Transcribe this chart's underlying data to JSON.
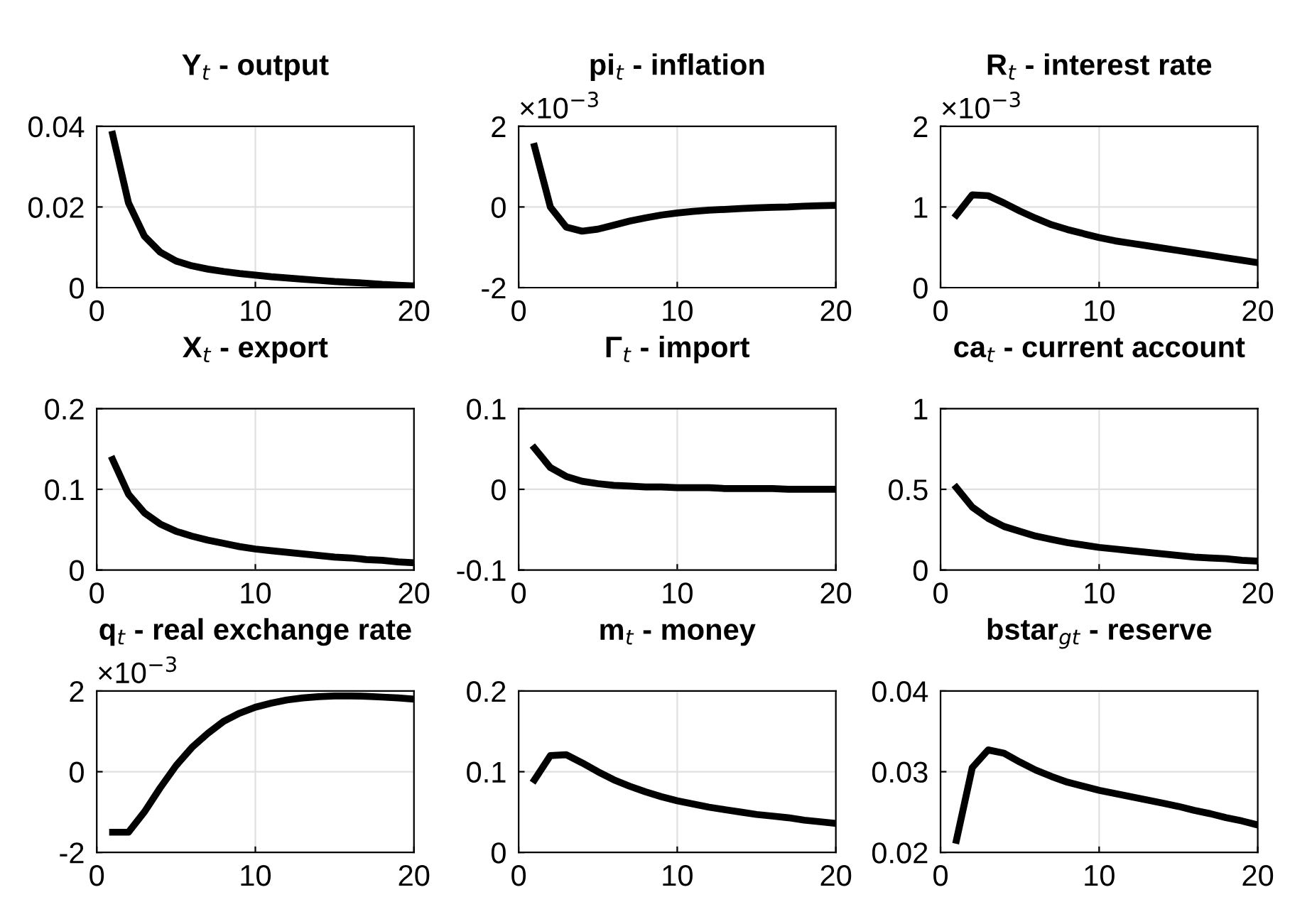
{
  "chart_data": [
    {
      "type": "line",
      "title": "Y$_{t}$ - output",
      "x": [
        1,
        2,
        3,
        4,
        5,
        6,
        7,
        8,
        9,
        10,
        11,
        12,
        13,
        14,
        15,
        16,
        17,
        18,
        19,
        20
      ],
      "series": [
        {
          "color": "#000000",
          "values": [
            0.038,
            0.021,
            0.0128,
            0.0088,
            0.0066,
            0.0054,
            0.0046,
            0.004,
            0.0035,
            0.0031,
            0.0027,
            0.0024,
            0.0021,
            0.0018,
            0.0015,
            0.0013,
            0.0011,
            0.0008,
            0.0006,
            0.0004
          ]
        }
      ],
      "xlim": [
        0,
        20
      ],
      "xticks": [
        0,
        10,
        20
      ],
      "ylim": [
        0,
        0.04
      ],
      "yticks": [
        0,
        0.02,
        0.04
      ],
      "grid": true,
      "marker": "none",
      "line_style": "solid"
    },
    {
      "type": "line",
      "title": "pi$_{t}$ - inflation",
      "annotations": [
        "×10$^{−3}$"
      ],
      "x": [
        1,
        2,
        3,
        4,
        5,
        6,
        7,
        8,
        9,
        10,
        11,
        12,
        13,
        14,
        15,
        16,
        17,
        18,
        19,
        20
      ],
      "series": [
        {
          "color": "#000000",
          "values": [
            1.5,
            0,
            -0.5,
            -0.6,
            -0.55,
            -0.45,
            -0.35,
            -0.27,
            -0.2,
            -0.15,
            -0.11,
            -0.08,
            -0.06,
            -0.04,
            -0.02,
            -0.01,
            0,
            0.02,
            0.03,
            0.04
          ]
        }
      ],
      "xlim": [
        0,
        20
      ],
      "xticks": [
        0,
        10,
        20
      ],
      "ylim": [
        -2,
        2
      ],
      "yticks": [
        -2,
        0,
        2
      ],
      "grid": true,
      "marker": "none",
      "line_style": "solid"
    },
    {
      "type": "line",
      "title": "R$_{t}$ - interest rate",
      "annotations": [
        "×10$^{−3}$"
      ],
      "x": [
        1,
        2,
        3,
        4,
        5,
        6,
        7,
        8,
        9,
        10,
        11,
        12,
        13,
        14,
        15,
        16,
        17,
        18,
        19,
        20
      ],
      "series": [
        {
          "color": "#000000",
          "values": [
            0.9,
            1.15,
            1.14,
            1.05,
            0.95,
            0.86,
            0.78,
            0.72,
            0.67,
            0.62,
            0.58,
            0.55,
            0.52,
            0.49,
            0.46,
            0.43,
            0.4,
            0.37,
            0.34,
            0.31
          ]
        }
      ],
      "xlim": [
        0,
        20
      ],
      "xticks": [
        0,
        10,
        20
      ],
      "ylim": [
        0,
        2
      ],
      "yticks": [
        0,
        1,
        2
      ],
      "grid": true,
      "marker": "none",
      "line_style": "solid"
    },
    {
      "type": "line",
      "title": "X$_{t}$ - export",
      "x": [
        1,
        2,
        3,
        4,
        5,
        6,
        7,
        8,
        9,
        10,
        11,
        12,
        13,
        14,
        15,
        16,
        17,
        18,
        19,
        20
      ],
      "series": [
        {
          "color": "#000000",
          "values": [
            0.137,
            0.094,
            0.071,
            0.057,
            0.048,
            0.042,
            0.037,
            0.033,
            0.029,
            0.026,
            0.024,
            0.022,
            0.02,
            0.018,
            0.016,
            0.015,
            0.013,
            0.012,
            0.01,
            0.009
          ]
        }
      ],
      "xlim": [
        0,
        20
      ],
      "xticks": [
        0,
        10,
        20
      ],
      "ylim": [
        0,
        0.2
      ],
      "yticks": [
        0,
        0.1,
        0.2
      ],
      "grid": true,
      "marker": "none",
      "line_style": "solid"
    },
    {
      "type": "line",
      "title": "Γ$_{t}$ - import",
      "x": [
        1,
        2,
        3,
        4,
        5,
        6,
        7,
        8,
        9,
        10,
        11,
        12,
        13,
        14,
        15,
        16,
        17,
        18,
        19,
        20
      ],
      "series": [
        {
          "color": "#000000",
          "values": [
            0.051,
            0.027,
            0.016,
            0.01,
            0.007,
            0.005,
            0.004,
            0.003,
            0.003,
            0.002,
            0.002,
            0.002,
            0.001,
            0.001,
            0.001,
            0.001,
            0,
            0,
            0,
            0
          ]
        }
      ],
      "xlim": [
        0,
        20
      ],
      "xticks": [
        0,
        10,
        20
      ],
      "ylim": [
        -0.1,
        0.1
      ],
      "yticks": [
        -0.1,
        0,
        0.1
      ],
      "grid": true,
      "marker": "none",
      "line_style": "solid"
    },
    {
      "type": "line",
      "title": "ca$_{t}$ - current account",
      "x": [
        1,
        2,
        3,
        4,
        5,
        6,
        7,
        8,
        9,
        10,
        11,
        12,
        13,
        14,
        15,
        16,
        17,
        18,
        19,
        20
      ],
      "series": [
        {
          "color": "#000000",
          "values": [
            0.51,
            0.39,
            0.32,
            0.27,
            0.24,
            0.21,
            0.19,
            0.17,
            0.155,
            0.14,
            0.13,
            0.12,
            0.11,
            0.1,
            0.09,
            0.08,
            0.075,
            0.07,
            0.06,
            0.055
          ]
        }
      ],
      "xlim": [
        0,
        20
      ],
      "xticks": [
        0,
        10,
        20
      ],
      "ylim": [
        0,
        1
      ],
      "yticks": [
        0,
        0.5,
        1
      ],
      "grid": true,
      "marker": "none",
      "line_style": "solid"
    },
    {
      "type": "line",
      "title": "q$_{t}$ - real exchange rate",
      "annotations": [
        "×10$^{−3}$"
      ],
      "x": [
        1,
        2,
        3,
        4,
        5,
        6,
        7,
        8,
        9,
        10,
        11,
        12,
        13,
        14,
        15,
        16,
        17,
        18,
        19,
        20
      ],
      "series": [
        {
          "color": "#000000",
          "values": [
            -1.5,
            -1.5,
            -1.0,
            -0.4,
            0.15,
            0.6,
            0.95,
            1.25,
            1.45,
            1.6,
            1.7,
            1.78,
            1.83,
            1.86,
            1.88,
            1.88,
            1.87,
            1.85,
            1.83,
            1.8
          ]
        }
      ],
      "xlim": [
        0,
        20
      ],
      "xticks": [
        0,
        10,
        20
      ],
      "ylim": [
        -2,
        2
      ],
      "yticks": [
        -2,
        0,
        2
      ],
      "grid": true,
      "marker": "none",
      "line_style": "solid"
    },
    {
      "type": "line",
      "title": "m$_{t}$ - money",
      "x": [
        1,
        2,
        3,
        4,
        5,
        6,
        7,
        8,
        9,
        10,
        11,
        12,
        13,
        14,
        15,
        16,
        17,
        18,
        19,
        20
      ],
      "series": [
        {
          "color": "#000000",
          "values": [
            0.09,
            0.12,
            0.121,
            0.111,
            0.1,
            0.09,
            0.082,
            0.075,
            0.069,
            0.064,
            0.06,
            0.056,
            0.053,
            0.05,
            0.047,
            0.045,
            0.043,
            0.04,
            0.038,
            0.036
          ]
        }
      ],
      "xlim": [
        0,
        20
      ],
      "xticks": [
        0,
        10,
        20
      ],
      "ylim": [
        0,
        0.2
      ],
      "yticks": [
        0,
        0.1,
        0.2
      ],
      "grid": true,
      "marker": "none",
      "line_style": "solid"
    },
    {
      "type": "line",
      "title": "bstar$_{gt}$ - reserve",
      "x": [
        1,
        2,
        3,
        4,
        5,
        6,
        7,
        8,
        9,
        10,
        11,
        12,
        13,
        14,
        15,
        16,
        17,
        18,
        19,
        20
      ],
      "series": [
        {
          "color": "#000000",
          "values": [
            0.0215,
            0.0305,
            0.0327,
            0.0323,
            0.0312,
            0.0302,
            0.0294,
            0.0287,
            0.0282,
            0.0277,
            0.0273,
            0.0269,
            0.0265,
            0.0261,
            0.0257,
            0.0252,
            0.0248,
            0.0243,
            0.0239,
            0.0234
          ]
        }
      ],
      "xlim": [
        0,
        20
      ],
      "xticks": [
        0,
        10,
        20
      ],
      "ylim": [
        0.02,
        0.04
      ],
      "yticks": [
        0.02,
        0.03,
        0.04
      ],
      "grid": true,
      "marker": "none",
      "line_style": "solid"
    }
  ]
}
